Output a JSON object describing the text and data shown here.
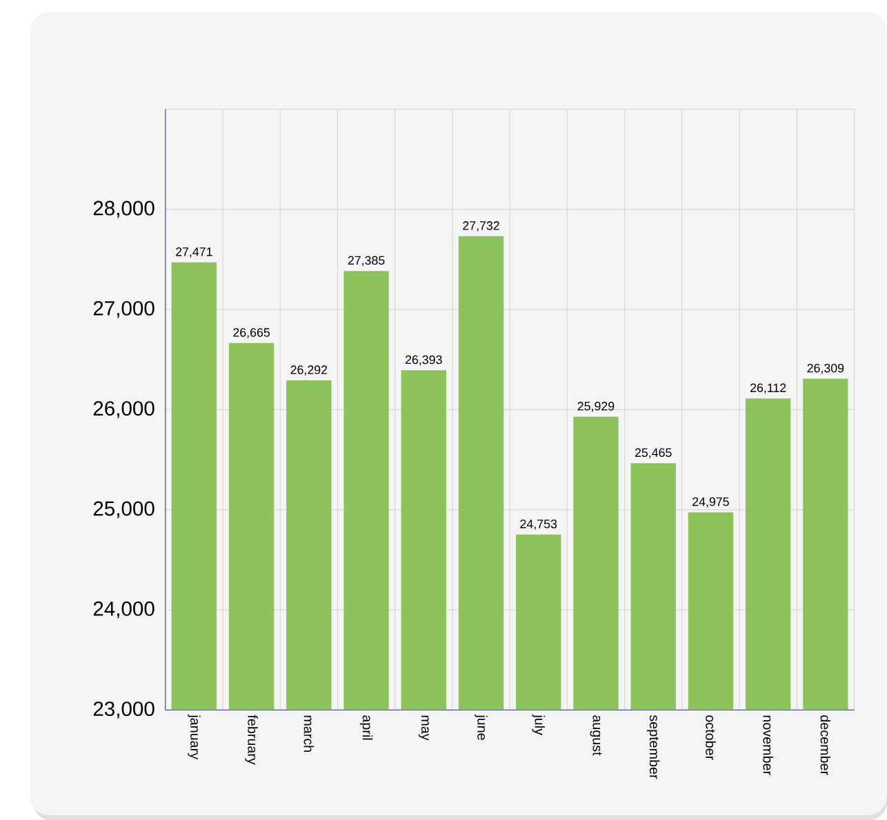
{
  "chart_data": {
    "type": "bar",
    "categories": [
      "january",
      "february",
      "march",
      "april",
      "may",
      "june",
      "july",
      "august",
      "september",
      "october",
      "november",
      "december"
    ],
    "values": [
      27471,
      26665,
      26292,
      27385,
      26393,
      27732,
      24753,
      25929,
      25465,
      24975,
      26112,
      26309
    ],
    "value_labels": [
      "27,471",
      "26,665",
      "26,292",
      "27,385",
      "26,393",
      "27,732",
      "24,753",
      "25,929",
      "25,465",
      "24,975",
      "26,112",
      "26,309"
    ],
    "color": "#8cc35a",
    "ylim": [
      23000,
      29000
    ],
    "yticks": [
      {
        "value": 23000,
        "label": "23,000"
      },
      {
        "value": 24000,
        "label": "24,000"
      },
      {
        "value": 25000,
        "label": "25,000"
      },
      {
        "value": 26000,
        "label": "26,000"
      },
      {
        "value": 27000,
        "label": "27,000"
      },
      {
        "value": 28000,
        "label": "28,000"
      },
      {
        "value": 29000,
        "label": null
      }
    ],
    "grid": true
  }
}
